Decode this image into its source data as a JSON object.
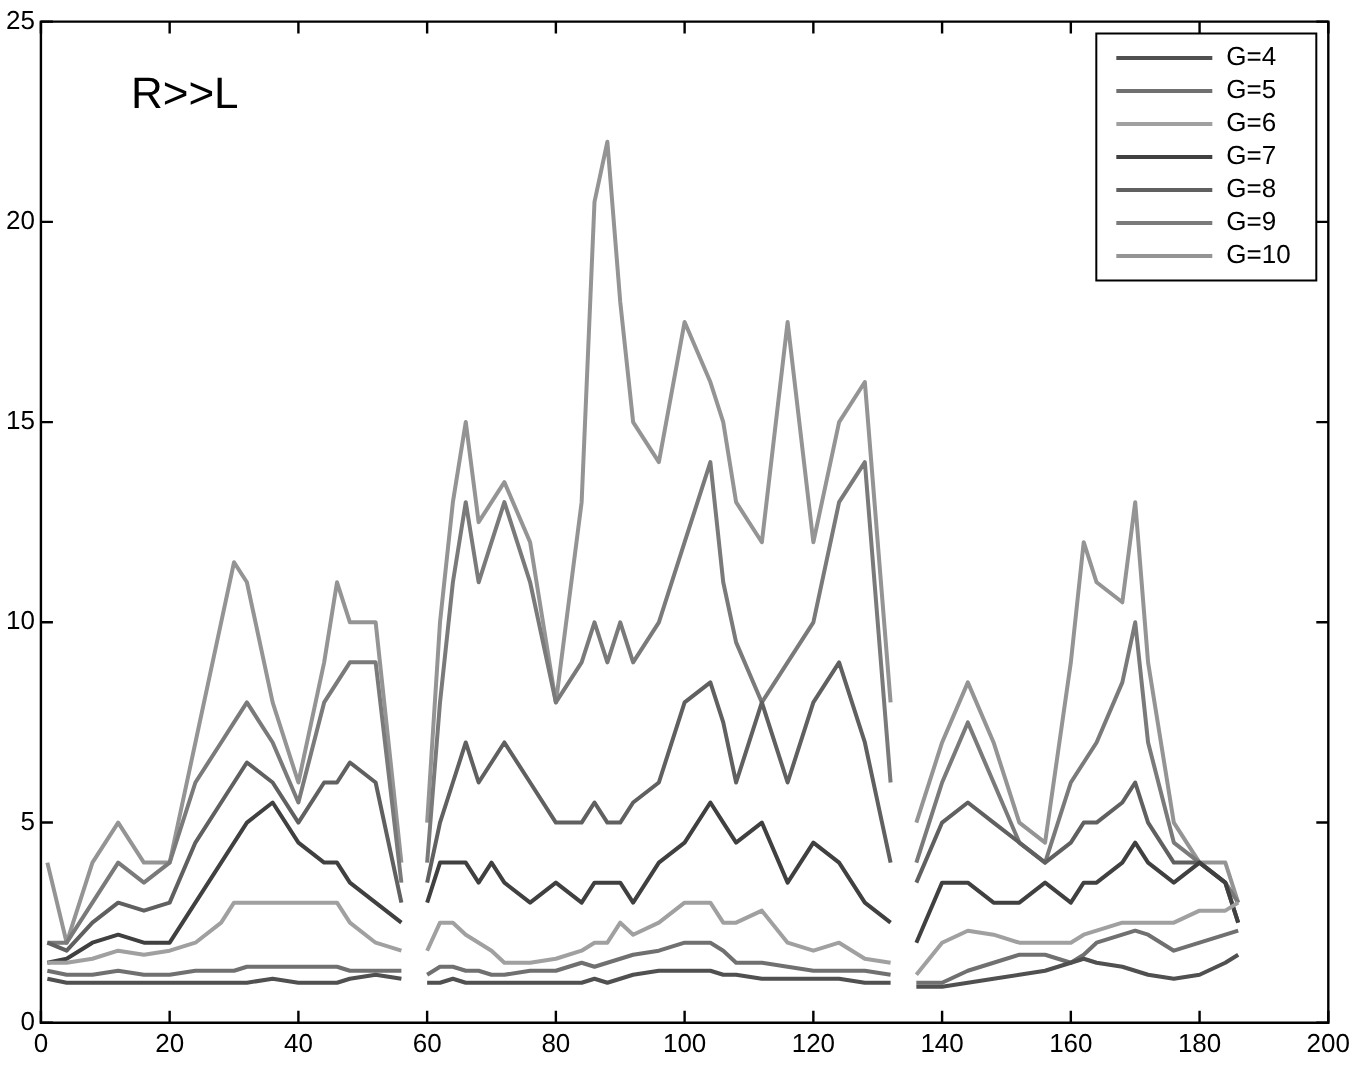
{
  "chart_data": {
    "type": "line",
    "annotations": [
      "R>>L"
    ],
    "legend": "top right",
    "grid": false,
    "marker": "none",
    "line_style": "solid",
    "x": [
      1,
      4,
      8,
      12,
      16,
      20,
      24,
      28,
      30,
      32,
      36,
      40,
      44,
      46,
      48,
      52,
      56,
      58,
      60,
      62,
      64,
      66,
      68,
      70,
      72,
      76,
      80,
      84,
      86,
      88,
      90,
      92,
      96,
      100,
      104,
      106,
      108,
      112,
      116,
      120,
      124,
      128,
      132,
      134,
      136,
      140,
      144,
      148,
      152,
      156,
      160,
      162,
      164,
      168,
      170,
      172,
      176,
      180,
      184,
      186
    ],
    "xlim": [
      0,
      200
    ],
    "xticks": [
      0,
      20,
      40,
      60,
      80,
      100,
      120,
      140,
      160,
      180,
      200
    ],
    "ylim": [
      0,
      25
    ],
    "yticks": [
      0,
      5,
      10,
      15,
      20,
      25
    ],
    "series": [
      {
        "name": "G=4",
        "color": "#505050",
        "values": [
          1.1,
          1,
          1,
          1,
          1,
          1,
          1,
          1,
          1,
          1,
          1.1,
          1,
          1,
          1,
          1.1,
          1.2,
          1.1,
          null,
          1,
          1,
          1.1,
          1,
          1,
          1,
          1,
          1,
          1,
          1,
          1.1,
          1,
          1.1,
          1.2,
          1.3,
          1.3,
          1.3,
          1.2,
          1.2,
          1.1,
          1.1,
          1.1,
          1.1,
          1,
          1,
          null,
          0.9,
          0.9,
          1,
          1.1,
          1.2,
          1.3,
          1.5,
          1.6,
          1.5,
          1.4,
          1.3,
          1.2,
          1.1,
          1.2,
          1.5,
          1.7
        ]
      },
      {
        "name": "G=5",
        "color": "#707070",
        "values": [
          1.3,
          1.2,
          1.2,
          1.3,
          1.2,
          1.2,
          1.3,
          1.3,
          1.3,
          1.4,
          1.4,
          1.4,
          1.4,
          1.4,
          1.3,
          1.3,
          1.3,
          null,
          1.2,
          1.4,
          1.4,
          1.3,
          1.3,
          1.2,
          1.2,
          1.3,
          1.3,
          1.5,
          1.4,
          1.5,
          1.6,
          1.7,
          1.8,
          2,
          2,
          1.8,
          1.5,
          1.5,
          1.4,
          1.3,
          1.3,
          1.3,
          1.2,
          null,
          1,
          1,
          1.3,
          1.5,
          1.7,
          1.7,
          1.5,
          1.7,
          2,
          2.2,
          2.3,
          2.2,
          1.8,
          2,
          2.2,
          2.3
        ]
      },
      {
        "name": "G=6",
        "color": "#a0a0a0",
        "values": [
          1.5,
          1.5,
          1.6,
          1.8,
          1.7,
          1.8,
          2,
          2.5,
          3,
          3,
          3,
          3,
          3,
          3,
          2.5,
          2,
          1.8,
          null,
          1.8,
          2.5,
          2.5,
          2.2,
          2,
          1.8,
          1.5,
          1.5,
          1.6,
          1.8,
          2,
          2,
          2.5,
          2.2,
          2.5,
          3,
          3,
          2.5,
          2.5,
          2.8,
          2,
          1.8,
          2,
          1.6,
          1.5,
          null,
          1.2,
          2,
          2.3,
          2.2,
          2,
          2,
          2,
          2.2,
          2.3,
          2.5,
          2.5,
          2.5,
          2.5,
          2.8,
          2.8,
          3
        ]
      },
      {
        "name": "G=7",
        "color": "#404040",
        "values": [
          1.5,
          1.6,
          2,
          2.2,
          2,
          2,
          3,
          4,
          4.5,
          5,
          5.5,
          4.5,
          4,
          4,
          3.5,
          3,
          2.5,
          null,
          3,
          4,
          4,
          4,
          3.5,
          4,
          3.5,
          3,
          3.5,
          3,
          3.5,
          3.5,
          3.5,
          3,
          4,
          4.5,
          5.5,
          5,
          4.5,
          5,
          3.5,
          4.5,
          4,
          3,
          2.5,
          null,
          2,
          3.5,
          3.5,
          3,
          3,
          3.5,
          3,
          3.5,
          3.5,
          4,
          4.5,
          4,
          3.5,
          4,
          3.5,
          2.5
        ]
      },
      {
        "name": "G=8",
        "color": "#606060",
        "values": [
          2,
          1.8,
          2.5,
          3,
          2.8,
          3,
          4.5,
          5.5,
          6,
          6.5,
          6,
          5,
          6,
          6,
          6.5,
          6,
          3,
          null,
          3.5,
          5,
          6,
          7,
          6,
          6.5,
          7,
          6,
          5,
          5,
          5.5,
          5,
          5,
          5.5,
          6,
          8,
          8.5,
          7.5,
          6,
          8,
          6,
          8,
          9,
          7,
          4,
          null,
          3.5,
          5,
          5.5,
          5,
          4.5,
          4,
          4.5,
          5,
          5,
          5.5,
          6,
          5,
          4,
          4,
          3.5,
          2.5
        ]
      },
      {
        "name": "G=9",
        "color": "#7a7a7a",
        "values": [
          2,
          2,
          3,
          4,
          3.5,
          4,
          6,
          7,
          7.5,
          8,
          7,
          5.5,
          8,
          8.5,
          9,
          9,
          3.5,
          null,
          4,
          8,
          11,
          13,
          11,
          12,
          13,
          11,
          8,
          9,
          10,
          9,
          10,
          9,
          10,
          12,
          14,
          11,
          9.5,
          8,
          9,
          10,
          13,
          14,
          6,
          null,
          4,
          6,
          7.5,
          6,
          4.5,
          4,
          6,
          6.5,
          7,
          8.5,
          10,
          7,
          4.5,
          4,
          3.5,
          3
        ]
      },
      {
        "name": "G=10",
        "color": "#949494",
        "values": [
          4,
          2,
          4,
          5,
          4,
          4,
          7,
          10,
          11.5,
          11,
          8,
          6,
          9,
          11,
          10,
          10,
          4,
          null,
          5,
          10,
          13,
          15,
          12.5,
          13,
          13.5,
          12,
          8,
          13,
          20.5,
          22,
          18,
          15,
          14,
          17.5,
          16,
          15,
          13,
          12,
          17.5,
          12,
          15,
          16,
          8,
          null,
          5,
          7,
          8.5,
          7,
          5,
          4.5,
          9,
          12,
          11,
          10.5,
          13,
          9,
          5,
          4,
          4,
          3
        ]
      }
    ]
  }
}
